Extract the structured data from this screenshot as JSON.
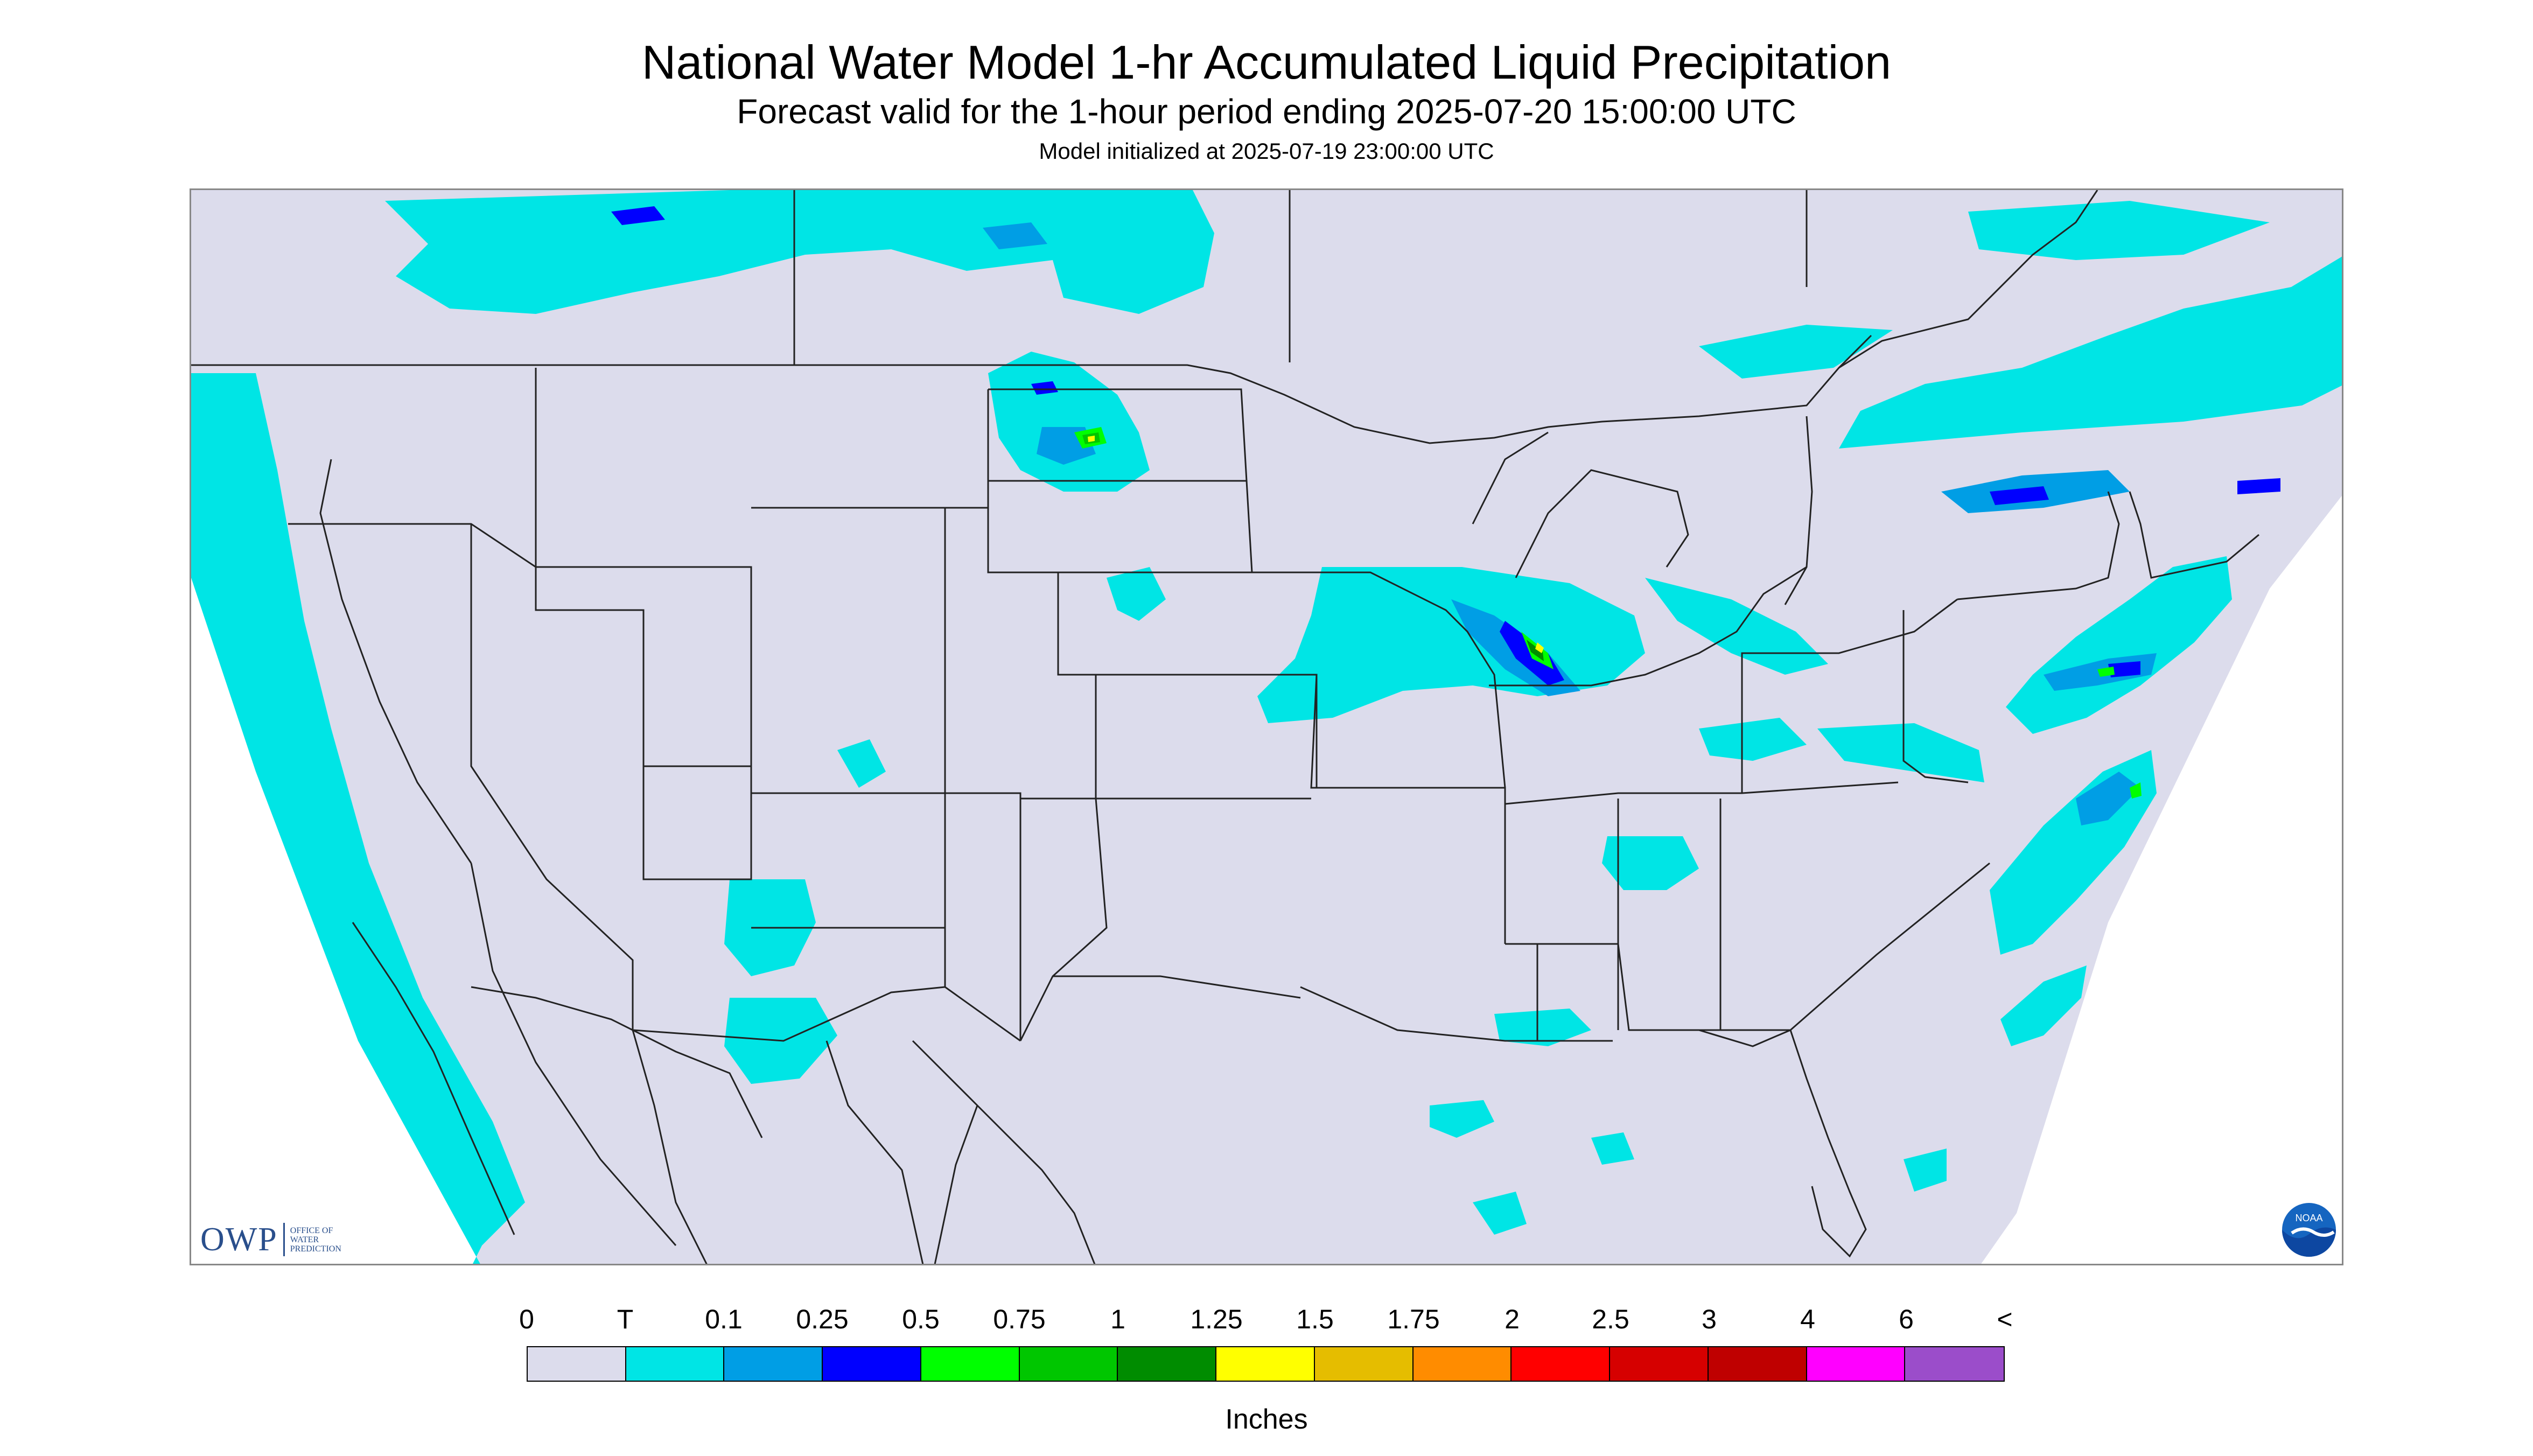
{
  "title": "National Water Model 1-hr Accumulated Liquid Precipitation",
  "subtitle": "Forecast valid for the 1-hour period ending 2025-07-20 15:00:00 UTC",
  "init_text": "Model initialized at 2025-07-19 23:00:00 UTC",
  "legend": {
    "labels": [
      "0",
      "T",
      "0.1",
      "0.25",
      "0.5",
      "0.75",
      "1",
      "1.25",
      "1.5",
      "1.75",
      "2",
      "2.5",
      "3",
      "4",
      "6",
      "<"
    ],
    "colors": [
      "#dcdcec",
      "#00e5e5",
      "#009ee5",
      "#0000ff",
      "#00ff00",
      "#00c600",
      "#008c00",
      "#ffff00",
      "#e5bd00",
      "#ff8c00",
      "#ff0000",
      "#d60000",
      "#bf0000",
      "#ff00ff",
      "#9b4dca"
    ],
    "units": "Inches"
  },
  "logos": {
    "owp_mark": "OWP",
    "owp_text": "OFFICE OF WATER PREDICTION",
    "noaa_text": "NOAA"
  },
  "map": {
    "background_color": "#dcdcec",
    "no_data_color": "#ffffff",
    "boundary_color": "#222222",
    "precip_colors": {
      "trace": "#00e5e5",
      "tenth": "#009ee5",
      "quarter": "#0000ff",
      "half": "#00ff00",
      "three_quarter": "#00c600",
      "one": "#008c00",
      "one_quarter": "#ffff00"
    }
  }
}
